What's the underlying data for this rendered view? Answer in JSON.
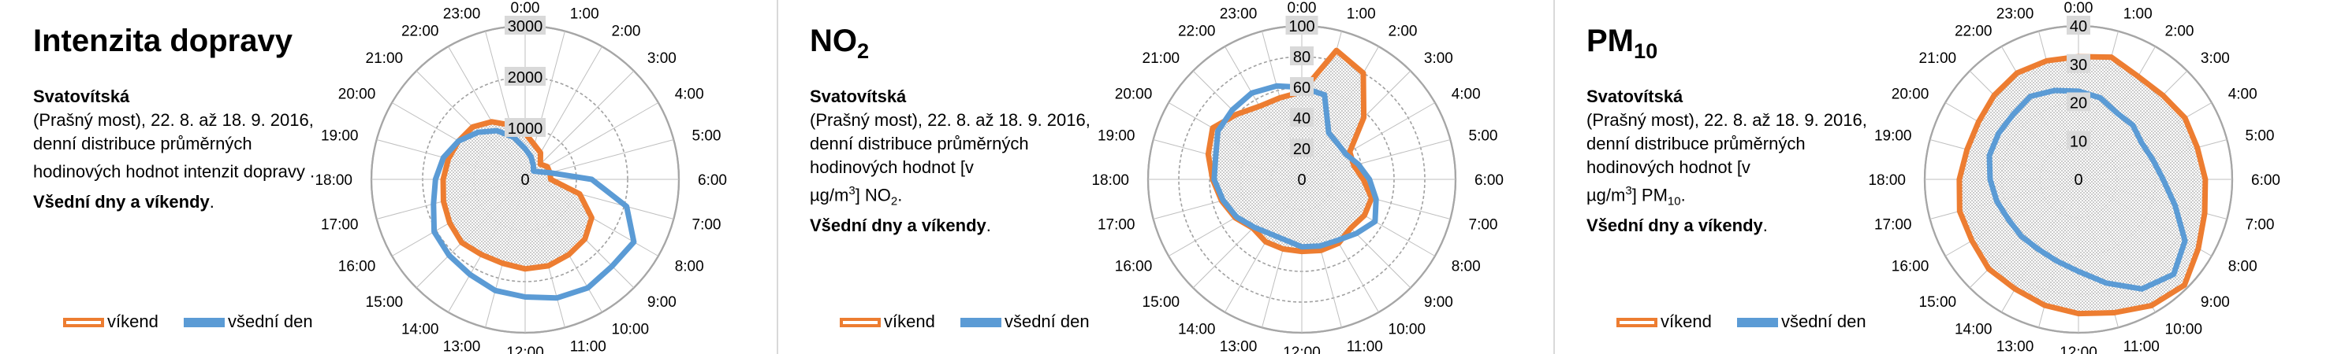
{
  "colors": {
    "weekend": "#ED7D31",
    "weekday": "#5B9BD5",
    "ring": "#a6a6a6",
    "spoke": "#bfbfbf",
    "fill": "#d9d9d9"
  },
  "panels": [
    {
      "title": "Intenzita dopravy",
      "title_sub": "",
      "desc_bold1": "Svatovítská",
      "desc_text": "(Prašný most), 22. 8. až 18. 9. 2016, denní distribuce průměrných hodinových hodnot intenzit dopravy .",
      "desc_unit_pre": "",
      "desc_unit_sup": "",
      "desc_unit_post": "",
      "desc_unit_sub": "",
      "desc_bold2": "Všední dny a víkendy",
      "desc_end": ".",
      "legend": [
        "víkend",
        "všední den"
      ]
    },
    {
      "title": "NO",
      "title_sub": "2",
      "desc_bold1": "Svatovítská",
      "desc_text": "(Prašný most), 22. 8. až 18. 9. 2016, denní distribuce průměrných hodinových hodnot  [v",
      "desc_unit_pre": "µg/m",
      "desc_unit_sup": "3",
      "desc_unit_post": "] NO",
      "desc_unit_sub": "2",
      "desc_bold2": "Všední dny a víkendy",
      "desc_end": ".",
      "legend": [
        "víkend",
        "všední den"
      ]
    },
    {
      "title": "PM",
      "title_sub": "10",
      "desc_bold1": "Svatovítská",
      "desc_text": "(Prašný most), 22. 8. až 18. 9. 2016, denní distribuce průměrných hodinových hodnot  [v",
      "desc_unit_pre": "µg/m",
      "desc_unit_sup": "3",
      "desc_unit_post": "] PM",
      "desc_unit_sub": "10",
      "desc_bold2": "Všední dny a víkendy",
      "desc_end": ".",
      "legend": [
        "víkend",
        "všední den"
      ]
    }
  ],
  "chart_data": [
    {
      "type": "radar",
      "categories": [
        "1:00",
        "2:00",
        "3:00",
        "4:00",
        "5:00",
        "6:00",
        "7:00",
        "8:00",
        "9:00",
        "10:00",
        "11:00",
        "12:00",
        "13:00",
        "14:00",
        "15:00",
        "16:00",
        "17:00",
        "18:00",
        "19:00",
        "20:00",
        "21:00",
        "22:00",
        "23:00",
        "0:00"
      ],
      "rmax": 3000,
      "ticks": [
        0,
        1000,
        2000,
        3000
      ],
      "series": [
        {
          "name": "víkend",
          "values": [
            700,
            600,
            420,
            500,
            500,
            500,
            1100,
            1500,
            1650,
            1700,
            1750,
            1750,
            1700,
            1700,
            1750,
            1700,
            1650,
            1600,
            1550,
            1500,
            1450,
            1300,
            1100,
            900
          ]
        },
        {
          "name": "všední den",
          "values": [
            450,
            320,
            230,
            300,
            500,
            1300,
            2050,
            2450,
            2400,
            2450,
            2400,
            2300,
            2250,
            2150,
            2100,
            2050,
            1850,
            1750,
            1650,
            1500,
            1300,
            1100,
            850,
            600
          ]
        }
      ]
    },
    {
      "type": "radar",
      "categories": [
        "1:00",
        "2:00",
        "3:00",
        "4:00",
        "5:00",
        "6:00",
        "7:00",
        "8:00",
        "9:00",
        "10:00",
        "11:00",
        "12:00",
        "13:00",
        "14:00",
        "15:00",
        "16:00",
        "17:00",
        "18:00",
        "19:00",
        "20:00",
        "21:00",
        "22:00",
        "23:00",
        "0:00"
      ],
      "rmax": 100,
      "ticks": [
        0,
        20,
        40,
        60,
        80,
        100
      ],
      "series": [
        {
          "name": "víkend",
          "values": [
            87,
            80,
            57,
            36,
            35,
            40,
            47,
            47,
            45,
            48,
            48,
            47,
            47,
            47,
            45,
            50,
            54,
            58,
            63,
            67,
            60,
            55,
            55,
            57
          ]
        },
        {
          "name": "všední den",
          "values": [
            57,
            35,
            33,
            33,
            38,
            44,
            50,
            55,
            50,
            46,
            45,
            44,
            41,
            41,
            44,
            49,
            53,
            57,
            58,
            63,
            64,
            65,
            63,
            60
          ]
        }
      ]
    },
    {
      "type": "radar",
      "categories": [
        "1:00",
        "2:00",
        "3:00",
        "4:00",
        "5:00",
        "6:00",
        "7:00",
        "8:00",
        "9:00",
        "10:00",
        "11:00",
        "12:00",
        "13:00",
        "14:00",
        "15:00",
        "16:00",
        "17:00",
        "18:00",
        "19:00",
        "20:00",
        "21:00",
        "22:00",
        "23:00",
        "0:00"
      ],
      "rmax": 40,
      "ticks": [
        0,
        10,
        20,
        30,
        40
      ],
      "series": [
        {
          "name": "víkend",
          "values": [
            33,
            31,
            31,
            32,
            32,
            33,
            34,
            36,
            39,
            38,
            36,
            35,
            34,
            33,
            33,
            32,
            32,
            31,
            30,
            30,
            31,
            32,
            32,
            32
          ]
        },
        {
          "name": "všední den",
          "values": [
            22,
            20,
            20,
            19,
            20,
            22,
            26,
            32,
            35,
            33,
            28,
            24,
            22,
            21,
            21,
            21,
            22,
            23,
            24,
            24,
            24,
            25,
            24,
            23
          ]
        }
      ]
    }
  ]
}
